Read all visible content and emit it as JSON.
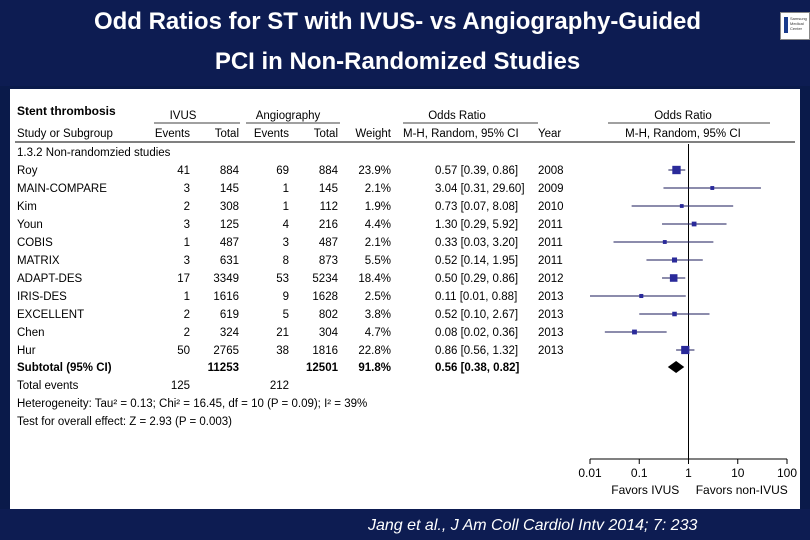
{
  "slide": {
    "title_line1": "Odd Ratios for ST with IVUS- vs  Angiography-Guided",
    "title_line2": "PCI in Non-Randomized Studies",
    "citation": "Jang et al., J Am Coll Cardiol Intv 2014; 7: 233",
    "logo_text": [
      "Samsung",
      "Medical",
      "Center"
    ]
  },
  "table": {
    "outcome_title": "Stent thrombosis",
    "group1_label": "IVUS",
    "group2_label": "Angiography",
    "or_header": "Odds Ratio",
    "or_header_right": "Odds Ratio",
    "columns": [
      "Study or Subgroup",
      "Events",
      "Total",
      "Events",
      "Total",
      "Weight",
      "M-H, Random, 95% CI",
      "Year"
    ],
    "plot_subheader": "M-H, Random, 95% CI",
    "subgroup_label": "1.3.2 Non-randomzied studies",
    "rows": [
      {
        "study": "Roy",
        "e1": "41",
        "n1": "884",
        "e2": "69",
        "n2": "884",
        "weight": "23.9%",
        "ci": "0.57 [0.39, 0.86]",
        "year": "2008"
      },
      {
        "study": "MAIN-COMPARE",
        "e1": "3",
        "n1": "145",
        "e2": "1",
        "n2": "145",
        "weight": "2.1%",
        "ci": "3.04 [0.31, 29.60]",
        "year": "2009"
      },
      {
        "study": "Kim",
        "e1": "2",
        "n1": "308",
        "e2": "1",
        "n2": "112",
        "weight": "1.9%",
        "ci": "0.73 [0.07, 8.08]",
        "year": "2010"
      },
      {
        "study": "Youn",
        "e1": "3",
        "n1": "125",
        "e2": "4",
        "n2": "216",
        "weight": "4.4%",
        "ci": "1.30 [0.29, 5.92]",
        "year": "2011"
      },
      {
        "study": "COBIS",
        "e1": "1",
        "n1": "487",
        "e2": "3",
        "n2": "487",
        "weight": "2.1%",
        "ci": "0.33 [0.03, 3.20]",
        "year": "2011"
      },
      {
        "study": "MATRIX",
        "e1": "3",
        "n1": "631",
        "e2": "8",
        "n2": "873",
        "weight": "5.5%",
        "ci": "0.52 [0.14, 1.95]",
        "year": "2011"
      },
      {
        "study": "ADAPT-DES",
        "e1": "17",
        "n1": "3349",
        "e2": "53",
        "n2": "5234",
        "weight": "18.4%",
        "ci": "0.50 [0.29, 0.86]",
        "year": "2012"
      },
      {
        "study": "IRIS-DES",
        "e1": "1",
        "n1": "1616",
        "e2": "9",
        "n2": "1628",
        "weight": "2.5%",
        "ci": "0.11 [0.01, 0.88]",
        "year": "2013"
      },
      {
        "study": "EXCELLENT",
        "e1": "2",
        "n1": "619",
        "e2": "5",
        "n2": "802",
        "weight": "3.8%",
        "ci": "0.52 [0.10, 2.67]",
        "year": "2013"
      },
      {
        "study": "Chen",
        "e1": "2",
        "n1": "324",
        "e2": "21",
        "n2": "304",
        "weight": "4.7%",
        "ci": "0.08 [0.02, 0.36]",
        "year": "2013"
      },
      {
        "study": "Hur",
        "e1": "50",
        "n1": "2765",
        "e2": "38",
        "n2": "1816",
        "weight": "22.8%",
        "ci": "0.86 [0.56, 1.32]",
        "year": "2013"
      }
    ],
    "subtotal": {
      "label": "Subtotal (95% CI)",
      "n1": "11253",
      "n2": "12501",
      "weight": "91.8%",
      "ci": "0.56 [0.38, 0.82]"
    },
    "total_events": {
      "label": "Total events",
      "e1": "125",
      "e2": "212"
    },
    "heterogeneity": "Heterogeneity: Tau² = 0.13; Chi² = 16.45, df = 10 (P = 0.09); I² = 39%",
    "overall_effect": "Test for overall effect: Z = 2.93 (P = 0.003)"
  },
  "chart_data": {
    "type": "scatter",
    "subtype": "forest-plot",
    "x_scale": "log",
    "xlim": [
      0.01,
      100
    ],
    "x_ticks": [
      "0.01",
      "0.1",
      "1",
      "10",
      "100"
    ],
    "x_tick_values": [
      0.01,
      0.1,
      1,
      10,
      100
    ],
    "xlabel_left": "Favors IVUS",
    "xlabel_right": "Favors non-IVUS",
    "reference_line": 1,
    "studies": [
      {
        "name": "Roy",
        "or": 0.57,
        "lo": 0.39,
        "hi": 0.86,
        "weight": 23.9
      },
      {
        "name": "MAIN-COMPARE",
        "or": 3.04,
        "lo": 0.31,
        "hi": 29.6,
        "weight": 2.1
      },
      {
        "name": "Kim",
        "or": 0.73,
        "lo": 0.07,
        "hi": 8.08,
        "weight": 1.9
      },
      {
        "name": "Youn",
        "or": 1.3,
        "lo": 0.29,
        "hi": 5.92,
        "weight": 4.4
      },
      {
        "name": "COBIS",
        "or": 0.33,
        "lo": 0.03,
        "hi": 3.2,
        "weight": 2.1
      },
      {
        "name": "MATRIX",
        "or": 0.52,
        "lo": 0.14,
        "hi": 1.95,
        "weight": 5.5
      },
      {
        "name": "ADAPT-DES",
        "or": 0.5,
        "lo": 0.29,
        "hi": 0.86,
        "weight": 18.4
      },
      {
        "name": "IRIS-DES",
        "or": 0.11,
        "lo": 0.01,
        "hi": 0.88,
        "weight": 2.5
      },
      {
        "name": "EXCELLENT",
        "or": 0.52,
        "lo": 0.1,
        "hi": 2.67,
        "weight": 3.8
      },
      {
        "name": "Chen",
        "or": 0.08,
        "lo": 0.02,
        "hi": 0.36,
        "weight": 4.7
      },
      {
        "name": "Hur",
        "or": 0.86,
        "lo": 0.56,
        "hi": 1.32,
        "weight": 22.8
      }
    ],
    "pooled": {
      "or": 0.56,
      "lo": 0.38,
      "hi": 0.82
    },
    "colors": {
      "square": "#2a2a9a",
      "line": "#1a1a5a",
      "diamond": "#000000",
      "axis": "#000000"
    }
  }
}
